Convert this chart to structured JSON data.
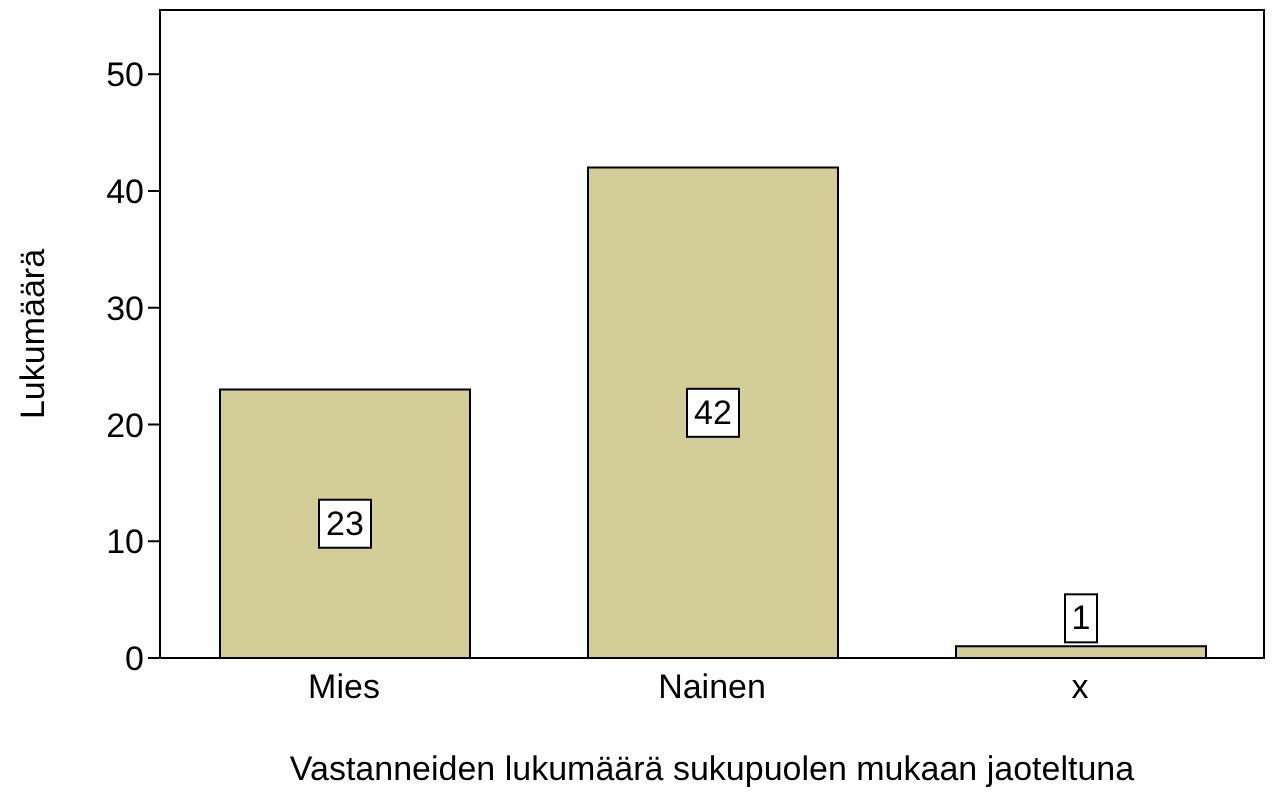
{
  "chart_data": {
    "type": "bar",
    "xlabel": "Vastanneiden lukumäärä sukupuolen mukaan jaoteltuna",
    "ylabel": "Lukumäärä",
    "categories": [
      "Mies",
      "Nainen",
      "x"
    ],
    "values": [
      23,
      42,
      1
    ],
    "color": "#d3ce98",
    "ylim": [
      0,
      55.5
    ],
    "yticks": [
      0,
      10,
      20,
      30,
      40,
      50
    ],
    "grid": false,
    "legend": false,
    "data_labels": true
  }
}
